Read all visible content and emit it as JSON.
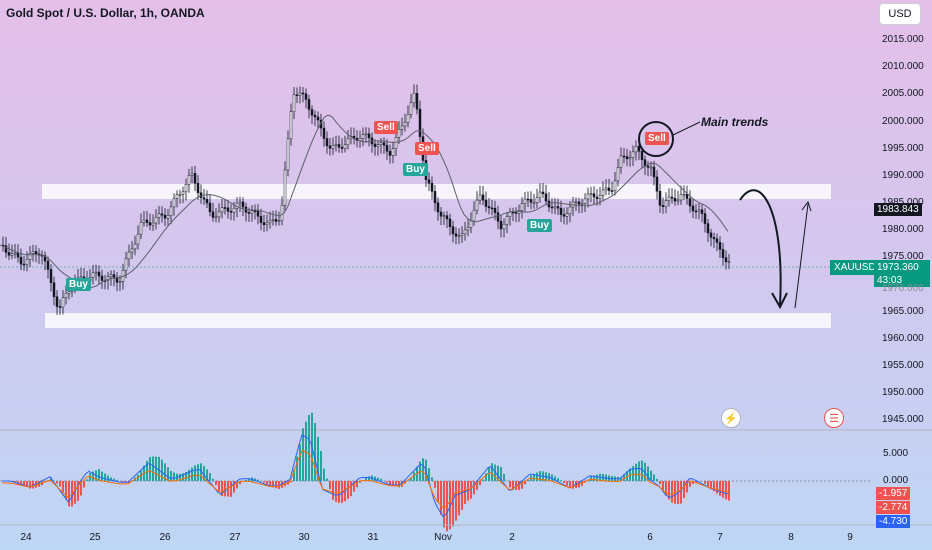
{
  "header": {
    "title": "Gold Spot / U.S. Dollar, 1h, OANDA"
  },
  "currency_button": {
    "label": "USD"
  },
  "price_axis": {
    "labels": [
      "2015.000",
      "2010.000",
      "2005.000",
      "2000.000",
      "1995.000",
      "1990.000",
      "1985.000",
      "1980.000",
      "1975.000",
      "1970.000",
      "1965.000",
      "1960.000",
      "1955.000",
      "1950.000",
      "1945.000"
    ]
  },
  "macd_axis": {
    "labels": [
      "5.000",
      "0.000"
    ]
  },
  "time_axis": {
    "labels": [
      "24",
      "25",
      "26",
      "27",
      "30",
      "31",
      "Nov",
      "2",
      "6",
      "7",
      "8",
      "9"
    ]
  },
  "price_markers": {
    "level": "1983.843",
    "symbol": "XAUUSD",
    "last": "1973.360",
    "countdown": "43:03",
    "hidden": "1970.000"
  },
  "macd_markers": {
    "v1": "-1.957",
    "v2": "-2.774",
    "v3": "-4.730"
  },
  "signals": [
    {
      "label": "Sell",
      "kind": "sell"
    },
    {
      "label": "Sell",
      "kind": "sell"
    },
    {
      "label": "Buy",
      "kind": "buy"
    },
    {
      "label": "Buy",
      "kind": "buy"
    },
    {
      "label": "Buy",
      "kind": "buy"
    },
    {
      "label": "Sell",
      "kind": "sell"
    }
  ],
  "annotation": {
    "text": "Main trends"
  },
  "colors": {
    "bull": "#26a69a",
    "bear": "#ef5350",
    "ma": "#5d606b",
    "macd": "#2962ff",
    "signal": "#ff6d00",
    "axis_box": "#131722",
    "price_box": "#089981"
  },
  "icons": {
    "lightning": "lightning-icon",
    "flag": "us-flag-icon"
  }
}
